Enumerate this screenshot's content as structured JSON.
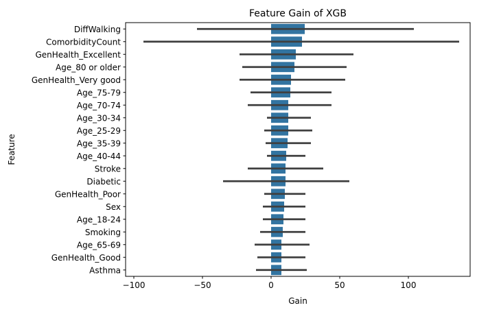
{
  "chart_data": {
    "type": "bar",
    "orientation": "horizontal",
    "title": "Feature Gain of XGB",
    "xlabel": "Gain",
    "ylabel": "Feature",
    "xlim": [
      -106,
      145
    ],
    "xticks": [
      -100,
      -50,
      0,
      50,
      100
    ],
    "grid": false,
    "bar_color": "#3274a1",
    "errorbar_color": "#3f3f3f",
    "categories": [
      "DiffWalking",
      "ComorbidityCount",
      "GenHealth_Excellent",
      "Age_80 or older",
      "GenHealth_Very good",
      "Age_75-79",
      "Age_70-74",
      "Age_30-34",
      "Age_25-29",
      "Age_35-39",
      "Age_40-44",
      "Stroke",
      "Diabetic",
      "GenHealth_Poor",
      "Sex",
      "Age_18-24",
      "Smoking",
      "Age_65-69",
      "GenHealth_Good",
      "Asthma"
    ],
    "values": [
      24.5,
      22.5,
      18,
      17,
      14.5,
      14,
      12.5,
      12.5,
      12.5,
      12,
      11,
      10.5,
      10.5,
      10,
      9.5,
      9,
      8.5,
      7.5,
      7.5,
      7.5
    ],
    "error_low": [
      -54,
      -93,
      -23,
      -21,
      -23,
      -15,
      -17,
      -3,
      -5,
      -4,
      -3,
      -17,
      -35,
      -5,
      -6,
      -6,
      -8,
      -12,
      -10,
      -11
    ],
    "error_high": [
      104,
      137,
      60,
      55,
      54,
      44,
      44,
      29,
      30,
      29,
      25,
      38,
      57,
      25,
      25,
      25,
      25,
      28,
      25,
      26
    ]
  }
}
